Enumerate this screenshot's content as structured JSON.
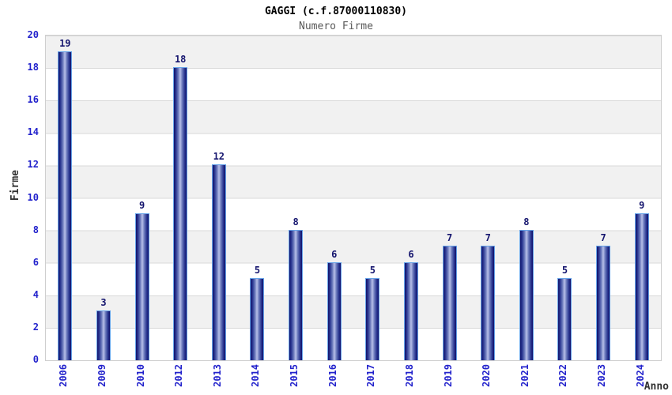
{
  "page": {
    "background": "#ffffff"
  },
  "chart_data": {
    "type": "bar",
    "title": "GAGGI (c.f.87000110830)",
    "subtitle": "Numero Firme",
    "xlabel": "Anno",
    "ylabel": "Firme",
    "categories": [
      "2006",
      "2009",
      "2010",
      "2012",
      "2013",
      "2014",
      "2015",
      "2016",
      "2017",
      "2018",
      "2019",
      "2020",
      "2021",
      "2022",
      "2023",
      "2024"
    ],
    "values": [
      19,
      3,
      9,
      18,
      12,
      5,
      8,
      6,
      5,
      6,
      7,
      7,
      8,
      5,
      7,
      9
    ],
    "ylim": [
      0,
      20
    ],
    "ytick_step": 2,
    "yticks": [
      0,
      2,
      4,
      6,
      8,
      10,
      12,
      14,
      16,
      18,
      20
    ],
    "grid": "horizontal-bands",
    "legend": "none",
    "colors": {
      "title": "#000000",
      "subtitle": "#5a5a5a",
      "axis_tick": "#2323cc",
      "value_label": "#15156e",
      "axis_title": "#333333",
      "band_gray": "#f1f1f1",
      "band_white": "#ffffff",
      "gridline": "#d9d9d9",
      "plot_border": "#cfcfcf",
      "bar_outline": "#66a3e8",
      "bar_gradient_stops": "#10106a 0%, #2c3892 16%, #7280c0 36%, #b9c1e9 50%, #7280c0 64%, #2c3892 84%, #10106a 100%"
    }
  }
}
